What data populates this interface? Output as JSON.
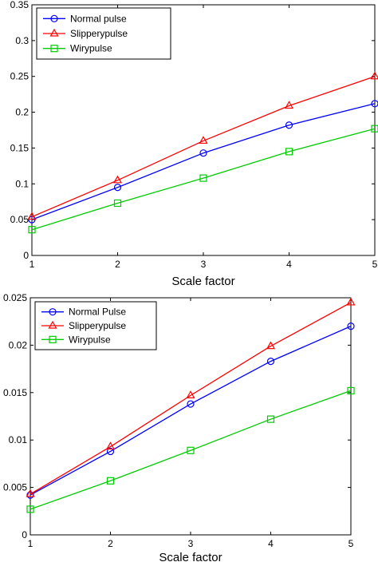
{
  "chart_data": [
    {
      "type": "line",
      "xlabel": "Scale factor",
      "ylabel": "",
      "x": [
        1,
        2,
        3,
        4,
        5
      ],
      "xlim": [
        1,
        5
      ],
      "ylim": [
        0,
        0.35
      ],
      "xticks": [
        "1",
        "2",
        "3",
        "4",
        "5"
      ],
      "yticks": [
        "0",
        "0.05",
        "0.1",
        "0.15",
        "0.2",
        "0.25",
        "0.3",
        "0.35"
      ],
      "grid": false,
      "legend_position": "top-left",
      "series": [
        {
          "name": "Normal pulse",
          "color": "#0000ff",
          "marker": "circle",
          "values": [
            0.05,
            0.095,
            0.143,
            0.182,
            0.212
          ]
        },
        {
          "name": "Slipperypulse",
          "color": "#ff0000",
          "marker": "triangle",
          "values": [
            0.054,
            0.105,
            0.16,
            0.209,
            0.25
          ]
        },
        {
          "name": "Wirypulse",
          "color": "#00cc00",
          "marker": "square",
          "values": [
            0.036,
            0.073,
            0.108,
            0.145,
            0.177
          ]
        }
      ]
    },
    {
      "type": "line",
      "xlabel": "Scale factor",
      "ylabel": "",
      "x": [
        1,
        2,
        3,
        4,
        5
      ],
      "xlim": [
        1,
        5
      ],
      "ylim": [
        0,
        0.025
      ],
      "xticks": [
        "1",
        "2",
        "3",
        "4",
        "5"
      ],
      "yticks": [
        "0",
        "0.005",
        "0.01",
        "0.015",
        "0.02",
        "0.025"
      ],
      "grid": false,
      "legend_position": "top-left",
      "series": [
        {
          "name": "Normal Pulse",
          "color": "#0000ff",
          "marker": "circle",
          "values": [
            0.0042,
            0.0088,
            0.0138,
            0.0183,
            0.022
          ]
        },
        {
          "name": "Slipperypulse",
          "color": "#ff0000",
          "marker": "triangle",
          "values": [
            0.0043,
            0.0093,
            0.0147,
            0.0199,
            0.0245
          ]
        },
        {
          "name": "Wirypulse",
          "color": "#00cc00",
          "marker": "square",
          "values": [
            0.0027,
            0.0057,
            0.0089,
            0.0122,
            0.0152
          ]
        }
      ]
    }
  ]
}
